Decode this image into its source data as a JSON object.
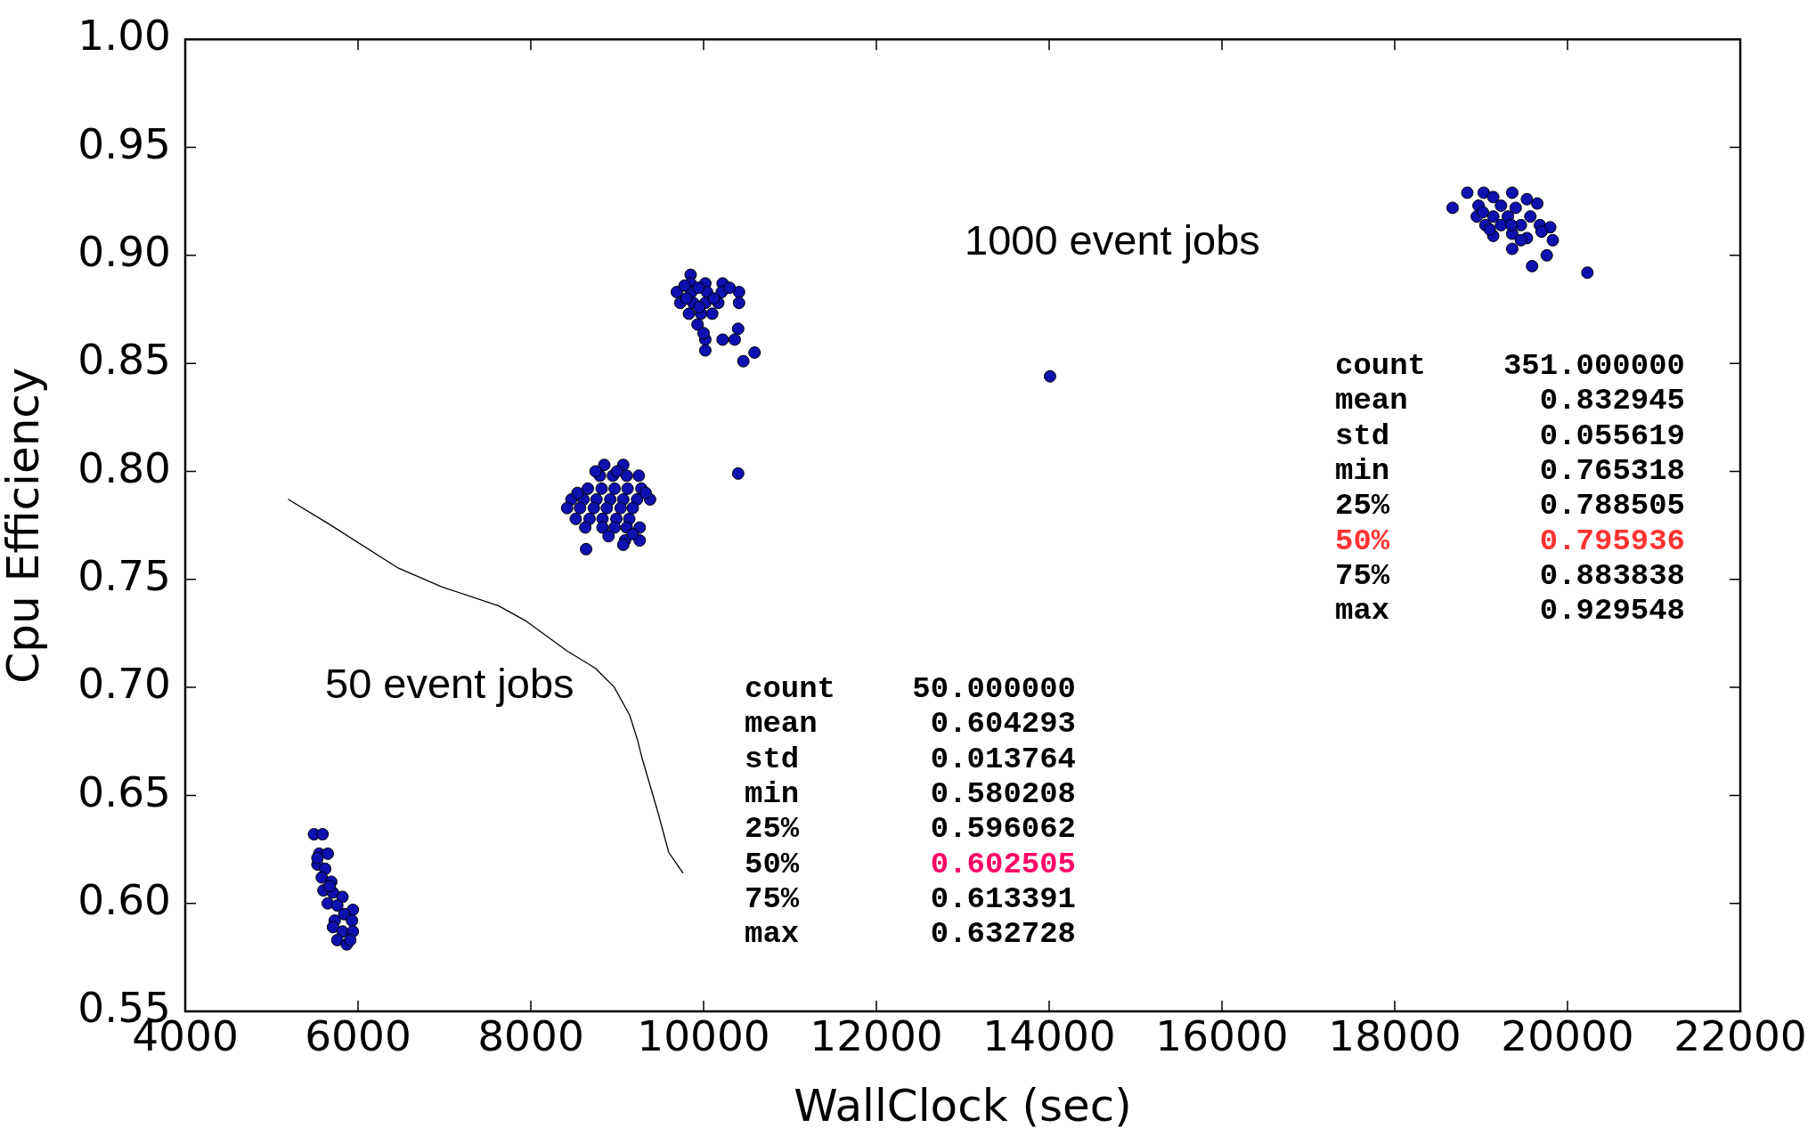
{
  "chart_data": {
    "type": "scatter",
    "xlabel": "WallClock (sec)",
    "ylabel": "Cpu Efficiency",
    "xlim": [
      4000,
      22000
    ],
    "xticks": [
      4000,
      6000,
      8000,
      10000,
      12000,
      14000,
      16000,
      18000,
      20000,
      22000
    ],
    "ylim": [
      0.55,
      1.0
    ],
    "yticks": [
      0.55,
      {
        "value": 0.6,
        "label": "0.60"
      },
      0.65,
      {
        "value": 0.7,
        "label": "0.70"
      },
      0.75,
      {
        "value": 0.8,
        "label": "0.80"
      },
      0.85,
      {
        "value": 0.9,
        "label": "0.90"
      },
      0.95,
      {
        "value": 1.0,
        "label": "1.00"
      }
    ],
    "marker": "circle",
    "series": [
      {
        "color": "#1010b0",
        "x": [
          5490,
          5590,
          5550,
          5650,
          5530,
          5620,
          5580,
          5690,
          5600,
          5710,
          5820,
          5650,
          5760,
          5940,
          5730,
          5840,
          5930,
          5710,
          5820,
          5940,
          5760,
          5870,
          5910,
          5670,
          5530,
          8850,
          9070,
          8800,
          8950,
          9110,
          9250,
          8660,
          8820,
          8970,
          9120,
          9280,
          8470,
          8610,
          8760,
          8920,
          9070,
          9230,
          9380,
          8420,
          8570,
          8730,
          8880,
          9040,
          9180,
          8520,
          8680,
          8830,
          8990,
          9140,
          8630,
          8830,
          8970,
          9110,
          9260,
          9090,
          9260,
          9070,
          8640,
          10400,
          14010,
          9850,
          9850,
          10020,
          10220,
          9690,
          9860,
          10040,
          10210,
          10410,
          9730,
          9880,
          10020,
          10170,
          10410,
          9830,
          9970,
          10100,
          9930,
          10400,
          10020,
          10220,
          10360,
          10020,
          10590,
          10460,
          18670,
          18840,
          19030,
          19360,
          19140,
          19530,
          19650,
          18970,
          19230,
          19400,
          18950,
          19140,
          19310,
          19570,
          19050,
          19230,
          19460,
          19680,
          19800,
          19140,
          19360,
          19530,
          19830,
          19360,
          19760,
          19590,
          20230,
          19100,
          19460,
          19350,
          19700,
          19020,
          9780,
          9940,
          10120,
          9800,
          10300,
          9950,
          10000,
          8750,
          9000,
          8540,
          9330,
          8900,
          9180
        ],
        "values": [
          0.632,
          0.632,
          0.623,
          0.623,
          0.618,
          0.616,
          0.612,
          0.61,
          0.606,
          0.605,
          0.603,
          0.6,
          0.599,
          0.597,
          0.592,
          0.595,
          0.592,
          0.589,
          0.587,
          0.587,
          0.583,
          0.581,
          0.583,
          0.608,
          0.621,
          0.803,
          0.803,
          0.798,
          0.798,
          0.798,
          0.798,
          0.792,
          0.792,
          0.792,
          0.792,
          0.792,
          0.787,
          0.787,
          0.787,
          0.787,
          0.787,
          0.787,
          0.787,
          0.783,
          0.783,
          0.783,
          0.783,
          0.783,
          0.783,
          0.778,
          0.778,
          0.778,
          0.778,
          0.778,
          0.774,
          0.774,
          0.774,
          0.774,
          0.774,
          0.768,
          0.768,
          0.766,
          0.764,
          0.799,
          0.844,
          0.891,
          0.887,
          0.887,
          0.887,
          0.883,
          0.883,
          0.883,
          0.883,
          0.883,
          0.878,
          0.878,
          0.878,
          0.878,
          0.878,
          0.873,
          0.873,
          0.873,
          0.868,
          0.866,
          0.861,
          0.861,
          0.861,
          0.856,
          0.855,
          0.851,
          0.922,
          0.929,
          0.929,
          0.929,
          0.927,
          0.926,
          0.924,
          0.923,
          0.923,
          0.922,
          0.918,
          0.918,
          0.918,
          0.918,
          0.914,
          0.914,
          0.914,
          0.914,
          0.913,
          0.909,
          0.91,
          0.908,
          0.907,
          0.903,
          0.9,
          0.895,
          0.892,
          0.912,
          0.907,
          0.914,
          0.911,
          0.92,
          0.886,
          0.885,
          0.88,
          0.88,
          0.885,
          0.876,
          0.864,
          0.8,
          0.8,
          0.79,
          0.79,
          0.77,
          0.771
        ]
      }
    ],
    "annotations": [
      "1000 event jobs",
      "count",
      "351.000000",
      "mean",
      "0.832945",
      "std",
      "0.055619",
      "min",
      "0.765318",
      "25%",
      "0.788505",
      "50%",
      "0.795936",
      "75%",
      "0.883838",
      "max",
      "0.929548",
      "50 event jobs",
      "count",
      "50.000000",
      "mean",
      "0.604293",
      "std",
      "0.013764",
      "min",
      "0.580208",
      "25%",
      "0.596062",
      "50%",
      "0.602505",
      "75%",
      "0.613391",
      "max",
      "0.632728"
    ]
  }
}
